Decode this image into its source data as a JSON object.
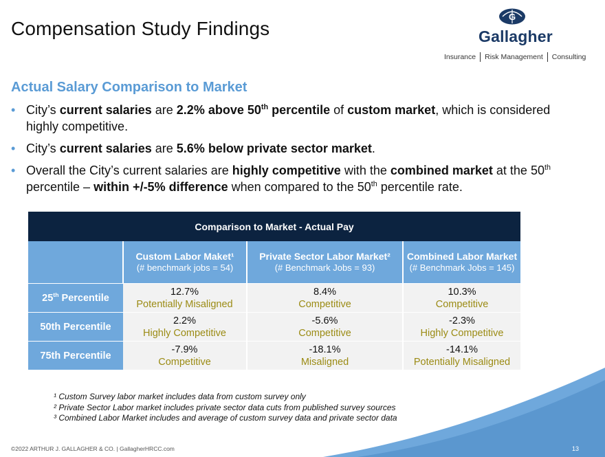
{
  "header": {
    "title": "Compensation Study Findings",
    "logo_text": "Gallagher",
    "tagline": [
      "Insurance",
      "Risk Management",
      "Consulting"
    ]
  },
  "content": {
    "subtitle": "Actual Salary Comparison to Market",
    "bullets": [
      {
        "parts": [
          {
            "t": "City’s "
          },
          {
            "t": "current salaries",
            "b": true
          },
          {
            "t": " are "
          },
          {
            "t": "2.2% above 50",
            "b": true
          },
          {
            "t": "th",
            "b": true,
            "sup": true
          },
          {
            "t": " percentile",
            "b": true
          },
          {
            "t": " of "
          },
          {
            "t": "custom market",
            "b": true
          },
          {
            "t": ", which is considered highly competitive."
          }
        ]
      },
      {
        "parts": [
          {
            "t": "City’s "
          },
          {
            "t": "current salaries",
            "b": true
          },
          {
            "t": " are "
          },
          {
            "t": "5.6% below private sector market",
            "b": true
          },
          {
            "t": "."
          }
        ]
      },
      {
        "parts": [
          {
            "t": "Overall the City’s current salaries are "
          },
          {
            "t": "highly competitive",
            "b": true
          },
          {
            "t": " with the "
          },
          {
            "t": "combined market",
            "b": true
          },
          {
            "t": " at the 50"
          },
          {
            "t": "th",
            "sup": true
          },
          {
            "t": " percentile – "
          },
          {
            "t": "within +/-5% difference",
            "b": true
          },
          {
            "t": " when compared to the 50"
          },
          {
            "t": "th",
            "sup": true
          },
          {
            "t": " percentile rate."
          }
        ]
      }
    ]
  },
  "table": {
    "caption": "Comparison to Market - Actual Pay",
    "columns": [
      {
        "label": "Custom Labor Maket¹",
        "sub": "(# benchmark jobs = 54)"
      },
      {
        "label": "Private Sector Labor Market²",
        "sub": "(# Benchmark Jobs = 93)"
      },
      {
        "label": "Combined Labor Market",
        "sub": "(# Benchmark Jobs = 145)"
      }
    ],
    "rows": [
      {
        "label": "25",
        "label_sup": "th",
        "label_rest": " Percentile",
        "cells": [
          {
            "value": "12.7%",
            "status": "Potentially Misaligned"
          },
          {
            "value": "8.4%",
            "status": "Competitive"
          },
          {
            "value": "10.3%",
            "status": "Competitive"
          }
        ]
      },
      {
        "label": "50th Percentile",
        "label_sup": "",
        "label_rest": "",
        "cells": [
          {
            "value": "2.2%",
            "status": "Highly Competitive"
          },
          {
            "value": "-5.6%",
            "status": "Competitive"
          },
          {
            "value": "-2.3%",
            "status": "Highly Competitive"
          }
        ]
      },
      {
        "label": "75th Percentile",
        "label_sup": "",
        "label_rest": "",
        "cells": [
          {
            "value": "-7.9%",
            "status": "Competitive"
          },
          {
            "value": "-18.1%",
            "status": "Misaligned"
          },
          {
            "value": "-14.1%",
            "status": "Potentially Misaligned"
          }
        ]
      }
    ]
  },
  "footnotes": [
    "¹ Custom Survey labor market includes data from custom survey only",
    "² Private Sector Labor market includes private sector data cuts from published survey sources",
    "³ Combined Labor Market includes and average of custom survey data and private sector data"
  ],
  "footer": {
    "copyright": "©2022 ARTHUR J. GALLAGHER & CO.  |  GallagherHRCC.com",
    "page_number": "13"
  },
  "colors": {
    "accent": "#5a9bd5",
    "table_caption_bg": "#0c2340",
    "table_header_bg": "#6fa8dc",
    "status_text": "#9b8b14",
    "logo": "#1b3a66"
  }
}
